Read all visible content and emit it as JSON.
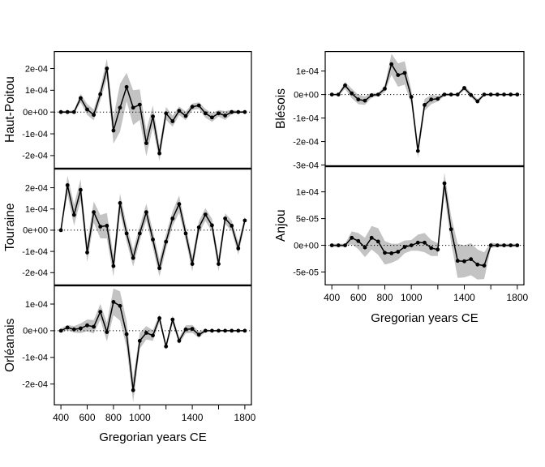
{
  "figure": {
    "description_colors": {
      "band": "#c3c3c3",
      "line": "#000000",
      "background": "#ffffff"
    }
  },
  "chart_data": {
    "type": "line",
    "xlabel": "Gregorian years CE",
    "xlim": [
      350,
      1850
    ],
    "grid": false,
    "legend": "none",
    "band_color": "#c3c3c3",
    "line_color": "#000000",
    "zero_line_style": "dotted",
    "value_unit": "1e-04",
    "years": [
      400,
      450,
      500,
      550,
      600,
      650,
      700,
      750,
      800,
      850,
      900,
      950,
      1000,
      1050,
      1100,
      1150,
      1200,
      1250,
      1300,
      1350,
      1400,
      1450,
      1500,
      1550,
      1600,
      1650,
      1700,
      1750,
      1800
    ],
    "x_ticks": {
      "years": [
        400,
        600,
        800,
        1000,
        1200,
        1400,
        1600,
        1800
      ],
      "labels": [
        "400",
        "600",
        "800",
        "1000",
        "",
        "1400",
        "",
        "1800"
      ]
    },
    "panels": [
      {
        "name": "Haut-Poitou",
        "ylim": [
          -2.6,
          2.8
        ],
        "yticks": [
          {
            "v": 2,
            "label": "2e-04"
          },
          {
            "v": 1,
            "label": "1e-04"
          },
          {
            "v": 0,
            "label": "0e+00"
          },
          {
            "v": -1,
            "label": "-1e-04"
          },
          {
            "v": -2,
            "label": "-2e-04"
          }
        ],
        "values": [
          0,
          0,
          0,
          0.64,
          0.12,
          -0.13,
          0.82,
          2.0,
          -0.85,
          0.2,
          1.15,
          0.2,
          0.34,
          -1.43,
          -0.2,
          -1.9,
          -0.06,
          -0.42,
          0.06,
          -0.18,
          0.24,
          0.3,
          -0.06,
          -0.25,
          -0.06,
          -0.16,
          0,
          0,
          0
        ],
        "band_halfwidth": [
          0.05,
          0.05,
          0.08,
          0.2,
          0.25,
          0.25,
          0.3,
          0.45,
          0.6,
          1.1,
          0.65,
          0.8,
          0.7,
          0.6,
          0.5,
          0.35,
          0.3,
          0.25,
          0.2,
          0.2,
          0.15,
          0.15,
          0.2,
          0.2,
          0.15,
          0.2,
          0.1,
          0.05,
          0.05
        ]
      },
      {
        "name": "Touraine",
        "ylim": [
          -2.6,
          2.9
        ],
        "yticks": [
          {
            "v": 2,
            "label": "2e-04"
          },
          {
            "v": 1,
            "label": "1e-04"
          },
          {
            "v": 0,
            "label": "0e+00"
          },
          {
            "v": -1,
            "label": "-1e-04"
          },
          {
            "v": -2,
            "label": "-2e-04"
          }
        ],
        "values": [
          0,
          2.12,
          0.72,
          1.9,
          -1.05,
          0.85,
          0.17,
          0.21,
          -1.69,
          1.28,
          -0.15,
          -1.31,
          -0.15,
          0.85,
          -0.44,
          -1.79,
          -0.54,
          0.55,
          1.23,
          -0.15,
          -1.59,
          0.13,
          0.74,
          0.23,
          -1.59,
          0.55,
          0.21,
          -0.86,
          0.46
        ],
        "band_halfwidth": [
          0.06,
          0.45,
          0.5,
          0.5,
          0.45,
          0.5,
          0.55,
          0.6,
          0.5,
          0.45,
          0.4,
          0.4,
          0.35,
          0.4,
          0.4,
          0.4,
          0.35,
          0.35,
          0.4,
          0.35,
          0.35,
          0.3,
          0.3,
          0.3,
          0.35,
          0.25,
          0.25,
          0.3,
          0.2
        ]
      },
      {
        "name": "Orléanais",
        "ylim": [
          -2.8,
          1.7
        ],
        "yticks": [
          {
            "v": 1,
            "label": "1e-04"
          },
          {
            "v": 0,
            "label": "0e+00"
          },
          {
            "v": -1,
            "label": "-1e-04"
          },
          {
            "v": -2,
            "label": "-2e-04"
          }
        ],
        "values": [
          0,
          0.12,
          0.05,
          0.09,
          0.2,
          0.15,
          0.71,
          -0.05,
          1.08,
          0.93,
          -0.13,
          -2.23,
          -0.38,
          -0.08,
          -0.18,
          0.47,
          -0.59,
          0.42,
          -0.38,
          0.05,
          0.07,
          -0.15,
          0,
          0,
          0,
          0,
          0,
          0,
          0
        ],
        "band_halfwidth": [
          0.08,
          0.1,
          0.12,
          0.18,
          0.22,
          0.25,
          0.3,
          0.35,
          0.5,
          0.55,
          0.5,
          0.45,
          0.3,
          0.25,
          0.2,
          0.15,
          0.12,
          0.15,
          0.12,
          0.15,
          0.15,
          0.12,
          0.05,
          0.03,
          0.03,
          0.03,
          0.03,
          0.03,
          0.03
        ]
      },
      {
        "name": "Blésois",
        "ylim": [
          -3.05,
          1.85
        ],
        "yticks": [
          {
            "v": 1,
            "label": "1e-04"
          },
          {
            "v": 0,
            "label": "0e+00"
          },
          {
            "v": -1,
            "label": "-1e-04"
          },
          {
            "v": -2,
            "label": "-2e-04"
          },
          {
            "v": -3,
            "label": "-3e-04"
          }
        ],
        "values": [
          0,
          0,
          0.39,
          0.05,
          -0.21,
          -0.26,
          -0.03,
          0,
          0.25,
          1.29,
          0.83,
          0.92,
          -0.1,
          -2.4,
          -0.44,
          -0.21,
          -0.18,
          0,
          0,
          0,
          0.28,
          -0.02,
          -0.29,
          0,
          0,
          0,
          0,
          0,
          0
        ],
        "band_halfwidth": [
          0.03,
          0.04,
          0.15,
          0.2,
          0.2,
          0.18,
          0.1,
          0.06,
          0.15,
          0.45,
          0.5,
          0.5,
          0.3,
          0.3,
          0.25,
          0.2,
          0.12,
          0.06,
          0.04,
          0.04,
          0.1,
          0.1,
          0.1,
          0.05,
          0.03,
          0.03,
          0.03,
          0.03,
          0.03
        ]
      },
      {
        "name": "Anjou",
        "ylim": [
          -0.75,
          1.48
        ],
        "yticks": [
          {
            "v": 1,
            "label": "1e-04"
          },
          {
            "v": 0.5,
            "label": "5e-05"
          },
          {
            "v": 0,
            "label": "0e+00"
          },
          {
            "v": -0.5,
            "label": "-5e-05"
          }
        ],
        "values": [
          0,
          0,
          0,
          0.14,
          0.08,
          -0.04,
          0.14,
          0.07,
          -0.14,
          -0.15,
          -0.12,
          -0.03,
          0,
          0.05,
          0.05,
          -0.05,
          -0.08,
          1.16,
          0.3,
          -0.29,
          -0.3,
          -0.26,
          -0.36,
          -0.38,
          0,
          0,
          0,
          0,
          0
        ],
        "band_halfwidth": [
          0.03,
          0.03,
          0.03,
          0.12,
          0.15,
          0.18,
          0.22,
          0.25,
          0.22,
          0.18,
          0.15,
          0.12,
          0.1,
          0.15,
          0.18,
          0.15,
          0.12,
          0.2,
          0.25,
          0.32,
          0.3,
          0.3,
          0.28,
          0.25,
          0.05,
          0.03,
          0.03,
          0.03,
          0.03
        ]
      }
    ]
  }
}
